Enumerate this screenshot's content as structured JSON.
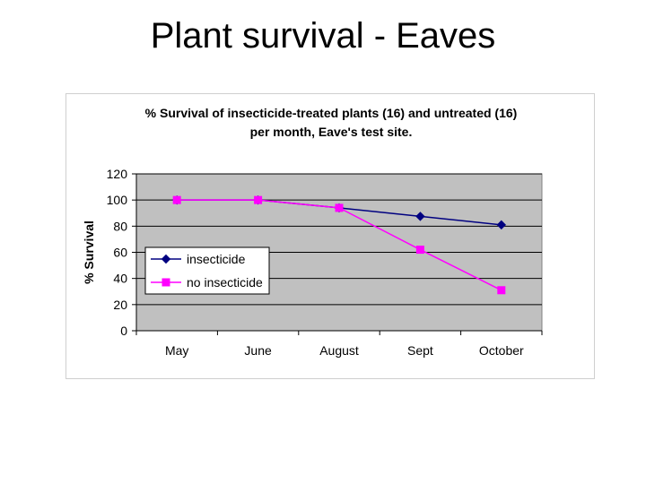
{
  "slide": {
    "title": "Plant survival - Eaves"
  },
  "chart_data": {
    "type": "line",
    "title_lines": [
      "% Survival of insecticide-treated plants (16) and untreated (16)",
      "per month, Eave's test site."
    ],
    "categories": [
      "May",
      "June",
      "August",
      "Sept",
      "October"
    ],
    "series": [
      {
        "name": "insecticide",
        "values": [
          100,
          100,
          94,
          87.5,
          81
        ],
        "color": "#000080",
        "marker": "diamond"
      },
      {
        "name": "no insecticide",
        "values": [
          100,
          100,
          94,
          62,
          31
        ],
        "color": "#ff00ff",
        "marker": "square"
      }
    ],
    "xlabel": "",
    "ylabel": "% Survival",
    "ylim": [
      0,
      120
    ],
    "yticks": [
      0,
      20,
      40,
      60,
      80,
      100,
      120
    ],
    "grid": true,
    "plot_background": "#c0c0c0",
    "legend_placement": "inside-left"
  }
}
